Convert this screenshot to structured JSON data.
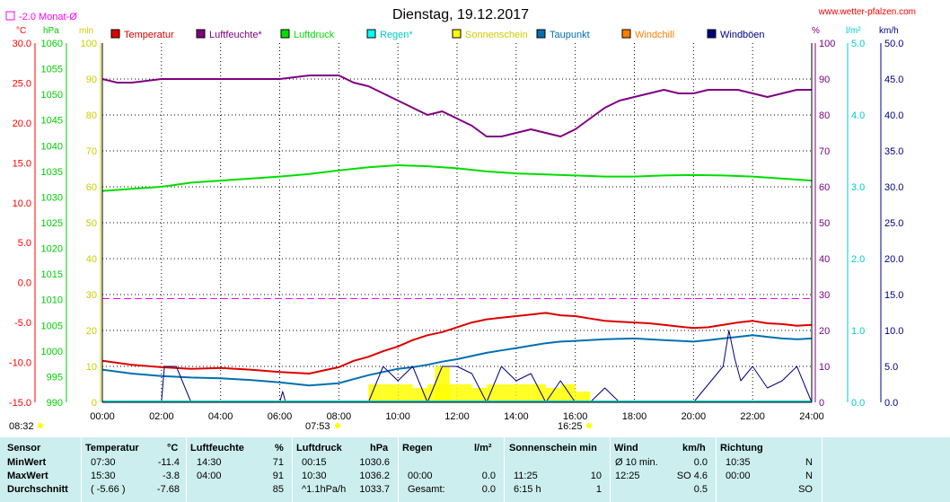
{
  "header": {
    "title": "Dienstag, 19.12.2017",
    "site": "www.wetter-pfalzen.com",
    "monat_label": "-2.0 Monat-Ø",
    "unit_left": [
      "°C",
      "hPa",
      "min"
    ],
    "unit_right": [
      "%",
      "l/m²",
      "km/h"
    ]
  },
  "footer": {
    "sunrise": "08:32",
    "sunrise_civil": "07:53",
    "sunset": "16:25"
  },
  "chart_data": {
    "type": "line",
    "title": "Dienstag, 19.12.2017",
    "x_ticks": [
      "00:00",
      "02:00",
      "04:00",
      "06:00",
      "08:00",
      "10:00",
      "12:00",
      "14:00",
      "16:00",
      "18:00",
      "20:00",
      "22:00",
      "24:00"
    ],
    "axes": {
      "temperature_c": {
        "ticks": [
          "30.0",
          "25.0",
          "20.0",
          "15.0",
          "10.0",
          "5.0",
          "0.0",
          "-5.0",
          "-10.0",
          "-15.0"
        ],
        "ylim": [
          -15,
          30
        ],
        "color": "#ff0000"
      },
      "pressure_hpa": {
        "ticks": [
          "1060",
          "1055",
          "1050",
          "1045",
          "1040",
          "1035",
          "1030",
          "1025",
          "1020",
          "1015",
          "1010",
          "1005",
          "1000",
          "995",
          "990"
        ],
        "ylim": [
          990,
          1060
        ],
        "color": "#00cc00"
      },
      "sunshine_min": {
        "ticks": [
          "100",
          "90",
          "80",
          "70",
          "60",
          "50",
          "40",
          "30",
          "20",
          "10",
          "0"
        ],
        "ylim": [
          0,
          100
        ],
        "color": "#cccc00"
      },
      "humidity_pct": {
        "ticks": [
          "100",
          "90",
          "80",
          "70",
          "60",
          "50",
          "40",
          "30",
          "20",
          "10",
          "0"
        ],
        "ylim": [
          0,
          100
        ],
        "color": "#800080"
      },
      "rain_lm2": {
        "ticks": [
          "5.0",
          "4.0",
          "3.0",
          "2.0",
          "1.0",
          "0.0"
        ],
        "ylim": [
          0,
          5
        ],
        "color": "#00cccc"
      },
      "wind_kmh": {
        "ticks": [
          "50.0",
          "45.0",
          "40.0",
          "35.0",
          "30.0",
          "25.0",
          "20.0",
          "15.0",
          "10.0",
          "5.0",
          "0.0"
        ],
        "ylim": [
          0,
          50
        ],
        "color": "#000080"
      }
    },
    "legend": [
      {
        "name": "Temperatur",
        "color": "#dd0000"
      },
      {
        "name": "Luftfeuchte*",
        "color": "#800080"
      },
      {
        "name": "Luftdruck",
        "color": "#00dd00"
      },
      {
        "name": "Regen*",
        "color": "#00ffff"
      },
      {
        "name": "Sonnenschein",
        "color": "#ffff00"
      },
      {
        "name": "Taupunkt",
        "color": "#0070b0"
      },
      {
        "name": "Windchill",
        "color": "#ff8000"
      },
      {
        "name": "Windböen",
        "color": "#000080"
      }
    ],
    "legend_placement": "top",
    "grid": true,
    "monthly_mean_temp": -2.0,
    "series": [
      {
        "name": "Luftfeuchte*",
        "unit": "%",
        "axis": "humidity_pct",
        "color": "#800080",
        "x": [
          0,
          0.5,
          1,
          2,
          3,
          4,
          5,
          6,
          7,
          7.5,
          8,
          8.5,
          9,
          9.5,
          10,
          10.5,
          11,
          11.5,
          12,
          12.5,
          13,
          13.5,
          14,
          14.5,
          15,
          15.5,
          16,
          16.5,
          17,
          17.5,
          18,
          18.5,
          19,
          19.5,
          20,
          20.5,
          21,
          21.5,
          22,
          22.5,
          23,
          23.5,
          24
        ],
        "y": [
          90,
          89,
          89,
          90,
          90,
          90,
          90,
          90,
          91,
          91,
          91,
          89,
          88,
          86,
          84,
          82,
          80,
          81,
          79,
          77,
          74,
          74,
          75,
          76,
          75,
          74,
          76,
          79,
          82,
          84,
          85,
          86,
          87,
          86,
          86,
          87,
          87,
          87,
          86,
          85,
          86,
          87,
          87
        ]
      },
      {
        "name": "Luftdruck",
        "unit": "hPa",
        "axis": "pressure_hpa",
        "color": "#00dd00",
        "x": [
          0,
          1,
          2,
          3,
          4,
          5,
          6,
          7,
          8,
          9,
          10,
          11,
          12,
          13,
          14,
          15,
          16,
          17,
          18,
          19,
          20,
          21,
          22,
          23,
          24
        ],
        "y": [
          1031.2,
          1031.6,
          1032.0,
          1032.8,
          1033.2,
          1033.6,
          1034.0,
          1034.5,
          1035.2,
          1035.8,
          1036.2,
          1036.0,
          1035.6,
          1035.0,
          1034.6,
          1034.4,
          1034.2,
          1034.0,
          1034.0,
          1034.2,
          1034.3,
          1034.2,
          1034.0,
          1033.6,
          1033.2
        ]
      },
      {
        "name": "Temperatur",
        "unit": "°C",
        "axis": "temperature_c",
        "color": "#dd0000",
        "x": [
          0,
          1,
          2,
          3,
          4,
          5,
          6,
          6.5,
          7,
          7.5,
          8,
          8.5,
          9,
          9.5,
          10,
          10.5,
          11,
          11.5,
          12,
          12.5,
          13,
          13.5,
          14,
          14.5,
          15,
          15.5,
          16,
          16.5,
          17,
          17.5,
          18,
          18.5,
          19,
          19.5,
          20,
          20.5,
          21,
          21.5,
          22,
          22.5,
          23,
          23.5,
          24
        ],
        "y": [
          -9.8,
          -10.3,
          -10.6,
          -10.8,
          -10.7,
          -10.9,
          -11.2,
          -11.3,
          -11.4,
          -11.0,
          -10.6,
          -9.8,
          -9.3,
          -8.6,
          -8.0,
          -7.2,
          -6.6,
          -6.2,
          -5.6,
          -5.0,
          -4.6,
          -4.4,
          -4.2,
          -4.0,
          -3.8,
          -4.1,
          -4.2,
          -4.5,
          -4.8,
          -4.9,
          -5.0,
          -5.1,
          -5.3,
          -5.5,
          -5.7,
          -5.6,
          -5.3,
          -5.0,
          -4.8,
          -5.1,
          -5.2,
          -5.4,
          -5.3
        ]
      },
      {
        "name": "Taupunkt",
        "unit": "°C",
        "axis": "temperature_c",
        "color": "#0070b0",
        "x": [
          0,
          1,
          2,
          3,
          4,
          5,
          6,
          7,
          8,
          8.5,
          9,
          9.5,
          10,
          10.5,
          11,
          11.5,
          12,
          12.5,
          13,
          13.5,
          14,
          14.5,
          15,
          15.5,
          16,
          17,
          18,
          19,
          20,
          20.5,
          21,
          21.5,
          22,
          22.5,
          23,
          23.5,
          24
        ],
        "y": [
          -10.9,
          -11.4,
          -11.7,
          -11.9,
          -12.0,
          -12.2,
          -12.5,
          -12.9,
          -12.6,
          -12.1,
          -11.6,
          -11.2,
          -10.8,
          -10.6,
          -10.3,
          -9.9,
          -9.6,
          -9.2,
          -8.8,
          -8.5,
          -8.2,
          -7.9,
          -7.6,
          -7.4,
          -7.3,
          -7.1,
          -7.0,
          -7.2,
          -7.4,
          -7.2,
          -7.0,
          -6.8,
          -6.6,
          -6.8,
          -7.0,
          -7.1,
          -7.0
        ]
      },
      {
        "name": "Sonnenschein",
        "unit": "min",
        "axis": "sunshine_min",
        "color": "#ffff00",
        "x": [
          9.0,
          9.5,
          10.0,
          10.5,
          11.0,
          11.25,
          11.5,
          12.0,
          12.5,
          13.0,
          13.5,
          14.0,
          14.5,
          15.0,
          15.5,
          16.0
        ],
        "y": [
          5,
          5,
          5,
          4,
          5,
          10,
          5,
          5,
          4,
          5,
          5,
          5,
          5,
          4,
          5,
          3
        ]
      },
      {
        "name": "Windböen",
        "unit": "km/h",
        "axis": "wind_kmh",
        "color": "#000080",
        "x": [
          0,
          2,
          2.1,
          2.5,
          3,
          6,
          6.1,
          6.2,
          9,
          9.5,
          10,
          10.5,
          11,
          11.5,
          12,
          12.5,
          13,
          13.5,
          14,
          14.5,
          15,
          15.5,
          16,
          16.5,
          17,
          17.5,
          18,
          19,
          20,
          21,
          21.2,
          21.4,
          21.6,
          22,
          22.5,
          23,
          23.5,
          24
        ],
        "y": [
          0,
          0,
          5,
          5,
          0,
          0,
          1.5,
          0,
          0,
          5,
          3,
          5,
          0,
          5,
          5,
          4,
          0,
          5,
          3,
          4,
          0,
          3,
          0,
          0,
          2,
          0,
          0,
          0,
          0,
          5,
          10,
          6,
          3,
          5,
          2,
          3,
          5,
          0
        ]
      }
    ]
  },
  "table": {
    "headers": [
      "Sensor",
      "Temperatur",
      "°C",
      "Luftfeuchte",
      "%",
      "Luftdruck",
      "hPa",
      "Regen",
      "l/m²",
      "Sonnenschein min",
      "Wind",
      "km/h",
      "Richtung"
    ],
    "rows": [
      {
        "label": "MinWert",
        "t_time": "07:30",
        "t_val": "-11.4",
        "h_time": "14:30",
        "h_val": "71",
        "p_time": "00:15",
        "p_val": "1030.6",
        "r_time": "",
        "r_val": "",
        "s_time": "",
        "s_val": "",
        "w_time": "Ø 10 min.",
        "w_val": "0.0",
        "d_time": "10:35",
        "d_val": "N"
      },
      {
        "label": "MaxWert",
        "t_time": "15:30",
        "t_val": "-3.8",
        "h_time": "04:00",
        "h_val": "91",
        "p_time": "10:30",
        "p_val": "1036.2",
        "r_time": "00:00",
        "r_val": "0.0",
        "s_time": "11:25",
        "s_val": "10",
        "w_time": "12:25",
        "w_val": "SO 4.6",
        "d_time": "00:00",
        "d_val": "N"
      },
      {
        "label": "Durchschnitt",
        "t_time": "( -5.66 )",
        "t_val": "-7.68",
        "h_time": "",
        "h_val": "85",
        "p_time": "^1.1hPa/h",
        "p_val": "1033.7",
        "r_time": "Gesamt:",
        "r_val": "0.0",
        "s_time": "6:15 h",
        "s_val": "1",
        "w_time": "",
        "w_val": "0.5",
        "d_time": "",
        "d_val": "SO"
      }
    ]
  }
}
